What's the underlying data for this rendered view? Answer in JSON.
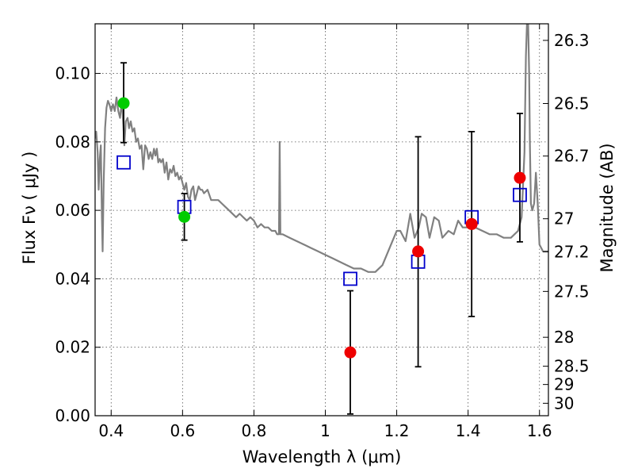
{
  "chart_data": {
    "type": "scatter",
    "title": "",
    "xlabel": "Wavelength  λ (μm)",
    "ylabel": "Flux  Fν  ( μJy )",
    "y2label": "Magnitude (AB)",
    "xlim": [
      0.355,
      1.625
    ],
    "ylim": [
      0.0,
      0.1145
    ],
    "grid": true,
    "x_ticks": [
      0.4,
      0.6,
      0.8,
      1.0,
      1.2,
      1.4,
      1.6
    ],
    "x_tick_labels": [
      "0.4",
      "0.6",
      "0.8",
      "1",
      "1.2",
      "1.4",
      "1.6"
    ],
    "y_ticks": [
      0.0,
      0.02,
      0.04,
      0.06,
      0.08,
      0.1
    ],
    "y_tick_labels": [
      "0.00",
      "0.02",
      "0.04",
      "0.06",
      "0.08",
      "0.10"
    ],
    "magnitude_ticks": [
      26.3,
      26.5,
      26.7,
      27.0,
      27.2,
      27.5,
      28.0,
      28.5,
      29.0,
      30.0
    ],
    "magnitude_tick_labels": [
      "26.3",
      "26.5",
      "26.7",
      "27",
      "27.2",
      "27.5",
      "28",
      "28.5",
      "29",
      "30"
    ],
    "colors": {
      "sed": "#808080",
      "model_box": "#0000cc",
      "green_point": "#00cc00",
      "red_point": "#ee0000",
      "errorbar": "#000000",
      "grid": "#555555"
    },
    "series": [
      {
        "type": "line",
        "points": [
          [
            0.355,
            0.081
          ],
          [
            0.358,
            0.083
          ],
          [
            0.362,
            0.077
          ],
          [
            0.365,
            0.066
          ],
          [
            0.368,
            0.075
          ],
          [
            0.371,
            0.079
          ],
          [
            0.374,
            0.058
          ],
          [
            0.376,
            0.048
          ],
          [
            0.379,
            0.068
          ],
          [
            0.383,
            0.084
          ],
          [
            0.387,
            0.09
          ],
          [
            0.391,
            0.092
          ],
          [
            0.395,
            0.091
          ],
          [
            0.4,
            0.089
          ],
          [
            0.405,
            0.091
          ],
          [
            0.41,
            0.089
          ],
          [
            0.415,
            0.093
          ],
          [
            0.42,
            0.089
          ],
          [
            0.425,
            0.087
          ],
          [
            0.43,
            0.092
          ],
          [
            0.434,
            0.085
          ],
          [
            0.437,
            0.079
          ],
          [
            0.441,
            0.086
          ],
          [
            0.446,
            0.087
          ],
          [
            0.45,
            0.084
          ],
          [
            0.455,
            0.086
          ],
          [
            0.46,
            0.083
          ],
          [
            0.465,
            0.084
          ],
          [
            0.47,
            0.08
          ],
          [
            0.475,
            0.081
          ],
          [
            0.48,
            0.078
          ],
          [
            0.485,
            0.079
          ],
          [
            0.49,
            0.072
          ],
          [
            0.495,
            0.079
          ],
          [
            0.5,
            0.078
          ],
          [
            0.505,
            0.075
          ],
          [
            0.51,
            0.077
          ],
          [
            0.515,
            0.075
          ],
          [
            0.52,
            0.078
          ],
          [
            0.524,
            0.076
          ],
          [
            0.528,
            0.078
          ],
          [
            0.532,
            0.074
          ],
          [
            0.536,
            0.075
          ],
          [
            0.54,
            0.074
          ],
          [
            0.545,
            0.075
          ],
          [
            0.55,
            0.071
          ],
          [
            0.555,
            0.074
          ],
          [
            0.56,
            0.069
          ],
          [
            0.565,
            0.072
          ],
          [
            0.57,
            0.071
          ],
          [
            0.575,
            0.073
          ],
          [
            0.58,
            0.07
          ],
          [
            0.585,
            0.071
          ],
          [
            0.59,
            0.069
          ],
          [
            0.595,
            0.07
          ],
          [
            0.6,
            0.068
          ],
          [
            0.605,
            0.066
          ],
          [
            0.61,
            0.068
          ],
          [
            0.615,
            0.064
          ],
          [
            0.62,
            0.063
          ],
          [
            0.625,
            0.066
          ],
          [
            0.63,
            0.067
          ],
          [
            0.635,
            0.063
          ],
          [
            0.64,
            0.065
          ],
          [
            0.645,
            0.067
          ],
          [
            0.65,
            0.066
          ],
          [
            0.655,
            0.066
          ],
          [
            0.66,
            0.065
          ],
          [
            0.67,
            0.066
          ],
          [
            0.68,
            0.063
          ],
          [
            0.69,
            0.063
          ],
          [
            0.7,
            0.063
          ],
          [
            0.71,
            0.062
          ],
          [
            0.72,
            0.061
          ],
          [
            0.73,
            0.06
          ],
          [
            0.74,
            0.059
          ],
          [
            0.75,
            0.058
          ],
          [
            0.76,
            0.059
          ],
          [
            0.77,
            0.058
          ],
          [
            0.78,
            0.057
          ],
          [
            0.79,
            0.058
          ],
          [
            0.8,
            0.057
          ],
          [
            0.81,
            0.055
          ],
          [
            0.82,
            0.056
          ],
          [
            0.83,
            0.055
          ],
          [
            0.84,
            0.055
          ],
          [
            0.85,
            0.054
          ],
          [
            0.86,
            0.054
          ],
          [
            0.865,
            0.053
          ],
          [
            0.87,
            0.053
          ],
          [
            0.872,
            0.08
          ],
          [
            0.874,
            0.053
          ],
          [
            0.88,
            0.053
          ],
          [
            0.9,
            0.052
          ],
          [
            0.92,
            0.051
          ],
          [
            0.94,
            0.05
          ],
          [
            0.96,
            0.049
          ],
          [
            0.98,
            0.048
          ],
          [
            1.0,
            0.047
          ],
          [
            1.02,
            0.046
          ],
          [
            1.04,
            0.045
          ],
          [
            1.06,
            0.044
          ],
          [
            1.08,
            0.043
          ],
          [
            1.1,
            0.043
          ],
          [
            1.12,
            0.042
          ],
          [
            1.14,
            0.042
          ],
          [
            1.16,
            0.044
          ],
          [
            1.18,
            0.049
          ],
          [
            1.2,
            0.054
          ],
          [
            1.21,
            0.054
          ],
          [
            1.225,
            0.051
          ],
          [
            1.238,
            0.059
          ],
          [
            1.25,
            0.052
          ],
          [
            1.262,
            0.055
          ],
          [
            1.27,
            0.059
          ],
          [
            1.282,
            0.058
          ],
          [
            1.292,
            0.052
          ],
          [
            1.305,
            0.058
          ],
          [
            1.318,
            0.057
          ],
          [
            1.328,
            0.052
          ],
          [
            1.345,
            0.054
          ],
          [
            1.36,
            0.053
          ],
          [
            1.372,
            0.057
          ],
          [
            1.385,
            0.055
          ],
          [
            1.4,
            0.055
          ],
          [
            1.42,
            0.055
          ],
          [
            1.44,
            0.054
          ],
          [
            1.46,
            0.053
          ],
          [
            1.48,
            0.053
          ],
          [
            1.5,
            0.052
          ],
          [
            1.52,
            0.052
          ],
          [
            1.54,
            0.054
          ],
          [
            1.55,
            0.058
          ],
          [
            1.558,
            0.077
          ],
          [
            1.562,
            0.105
          ],
          [
            1.565,
            0.115
          ],
          [
            1.568,
            0.116
          ],
          [
            1.571,
            0.1
          ],
          [
            1.573,
            0.08
          ],
          [
            1.576,
            0.062
          ],
          [
            1.58,
            0.06
          ],
          [
            1.585,
            0.062
          ],
          [
            1.59,
            0.071
          ],
          [
            1.595,
            0.062
          ],
          [
            1.6,
            0.05
          ],
          [
            1.61,
            0.048
          ],
          [
            1.625,
            0.048
          ]
        ]
      },
      {
        "type": "scatter",
        "marker": "square",
        "points": [
          [
            0.435,
            0.074
          ],
          [
            0.605,
            0.061
          ],
          [
            1.07,
            0.04
          ],
          [
            1.26,
            0.045
          ],
          [
            1.41,
            0.058
          ],
          [
            1.545,
            0.0645
          ]
        ]
      },
      {
        "type": "scatter",
        "marker": "circle",
        "points": [
          {
            "x": 0.435,
            "y": 0.0913,
            "yerr_low": 0.0798,
            "yerr_high": 0.1031
          },
          {
            "x": 0.605,
            "y": 0.0581,
            "yerr_low": 0.0513,
            "yerr_high": 0.0649
          }
        ]
      },
      {
        "type": "scatter",
        "marker": "circle",
        "points": [
          {
            "x": 1.07,
            "y": 0.0185,
            "yerr_low": 0.0005,
            "yerr_high": 0.0365
          },
          {
            "x": 1.26,
            "y": 0.048,
            "yerr_low": 0.0143,
            "yerr_high": 0.0815
          },
          {
            "x": 1.41,
            "y": 0.056,
            "yerr_low": 0.029,
            "yerr_high": 0.083
          },
          {
            "x": 1.545,
            "y": 0.0695,
            "yerr_low": 0.0508,
            "yerr_high": 0.0883
          }
        ]
      }
    ]
  }
}
